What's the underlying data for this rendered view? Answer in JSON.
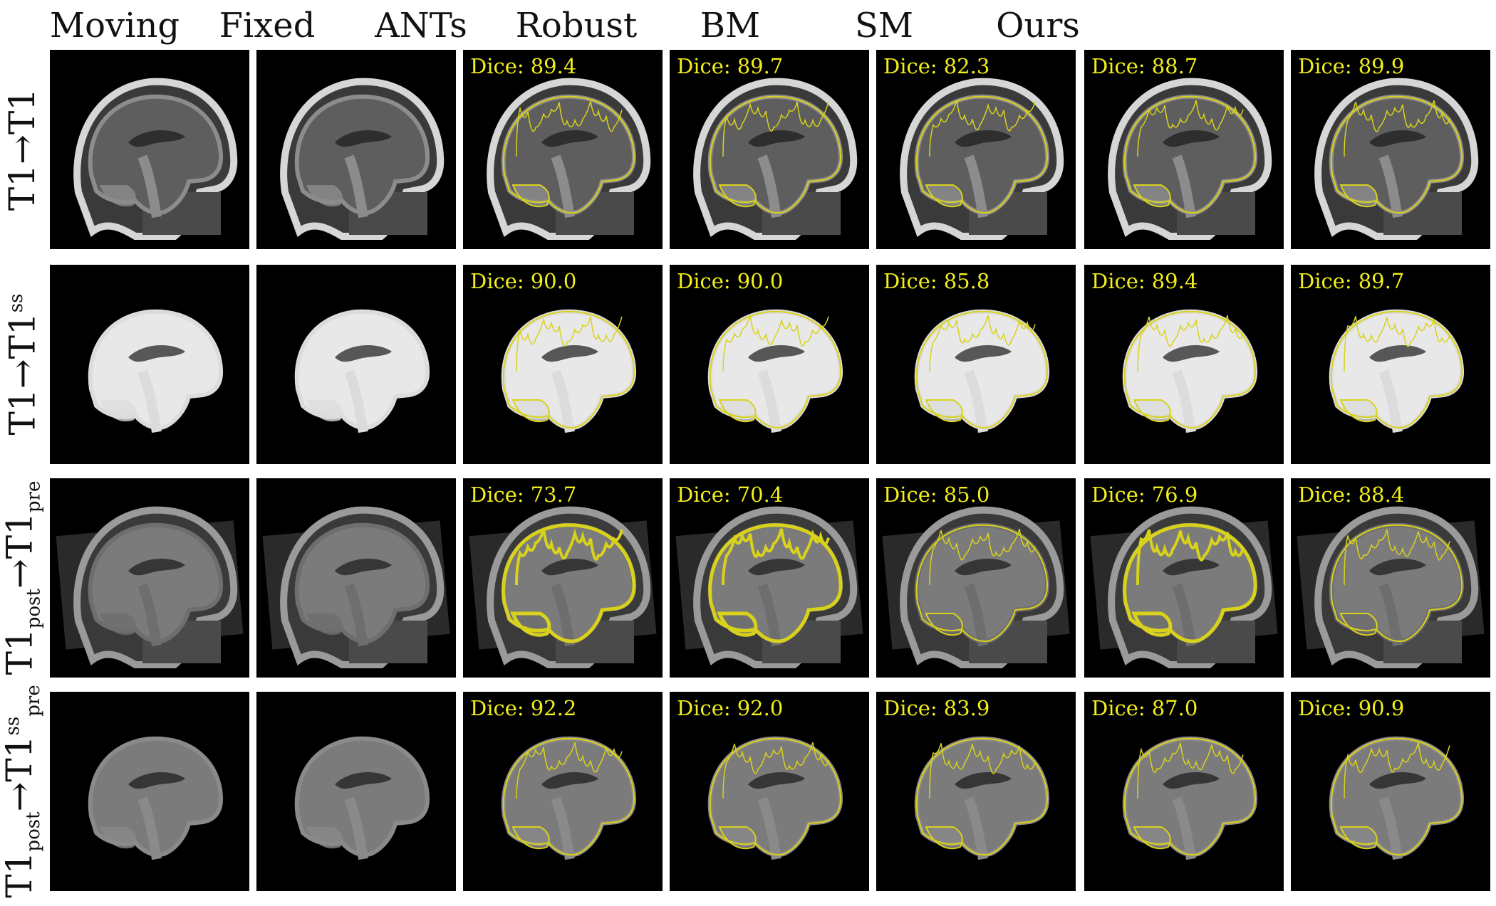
{
  "columns": [
    "Moving",
    "Fixed",
    "ANTs",
    "Robust",
    "BM",
    "SM",
    "Ours"
  ],
  "dice_label": "Dice:",
  "rows": [
    {
      "label": {
        "base": "T1",
        "arrow": "→",
        "target": "T1",
        "target_sup": "",
        "target_sub": "",
        "base_sub": ""
      },
      "dice": [
        "89.4",
        "89.7",
        "82.3",
        "88.7",
        "89.9"
      ]
    },
    {
      "label": {
        "base": "T1",
        "arrow": "→",
        "target": "T1",
        "target_sup": "ss",
        "target_sub": "",
        "base_sub": ""
      },
      "dice": [
        "90.0",
        "90.0",
        "85.8",
        "89.4",
        "89.7"
      ]
    },
    {
      "label": {
        "base": "T1",
        "base_sub": "post",
        "arrow": "→",
        "target": "T1",
        "target_sup": "",
        "target_sub": "pre"
      },
      "dice": [
        "73.7",
        "70.4",
        "85.0",
        "76.9",
        "88.4"
      ]
    },
    {
      "label": {
        "base": "T1",
        "base_sub": "post",
        "arrow": "→",
        "target": "T1",
        "target_sup": "ss",
        "target_sub": "pre"
      },
      "dice": [
        "92.2",
        "92.0",
        "83.9",
        "87.0",
        "90.9"
      ]
    }
  ],
  "colors": {
    "dice_text": "#f2ee1a",
    "contour": "#d9d21c",
    "panel_bg": "#000000"
  }
}
